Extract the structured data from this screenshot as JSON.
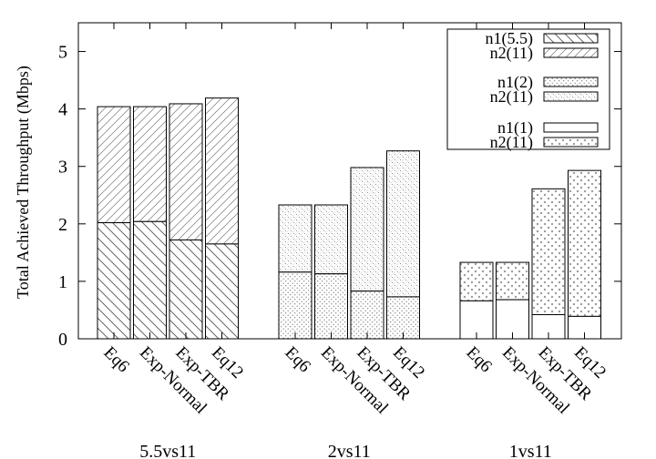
{
  "chart_data": {
    "type": "bar",
    "stacked": true,
    "ylabel": "Total Achieved Throughput (Mbps)",
    "ylim": [
      0,
      5.5
    ],
    "yticks": [
      0,
      1,
      2,
      3,
      4,
      5
    ],
    "grid": false,
    "legend_position": "top-right",
    "groups": [
      {
        "label": "5.5vs11",
        "bottom_series": "n1(5.5)",
        "top_series": "n2(11)",
        "bottom_pattern": "hatch-back",
        "top_pattern": "hatch-fwd",
        "bars": [
          {
            "category": "Eq6",
            "bottom": 2.02,
            "total": 4.04
          },
          {
            "category": "Exp-Normal",
            "bottom": 2.04,
            "total": 4.04
          },
          {
            "category": "Exp-TBR",
            "bottom": 1.72,
            "total": 4.09
          },
          {
            "category": "Eq12",
            "bottom": 1.65,
            "total": 4.19
          }
        ]
      },
      {
        "label": "2vs11",
        "bottom_series": "n1(2)",
        "top_series": "n2(11)",
        "bottom_pattern": "dots-sparse",
        "top_pattern": "dots-dense",
        "bars": [
          {
            "category": "Eq6",
            "bottom": 1.16,
            "total": 2.33
          },
          {
            "category": "Exp-Normal",
            "bottom": 1.13,
            "total": 2.33
          },
          {
            "category": "Exp-TBR",
            "bottom": 0.83,
            "total": 2.98
          },
          {
            "category": "Eq12",
            "bottom": 0.73,
            "total": 3.27
          }
        ]
      },
      {
        "label": "1vs11",
        "bottom_series": "n1(1)",
        "top_series": "n2(11)",
        "bottom_pattern": "empty",
        "top_pattern": "crosses",
        "bars": [
          {
            "category": "Eq6",
            "bottom": 0.66,
            "total": 1.33
          },
          {
            "category": "Exp-Normal",
            "bottom": 0.68,
            "total": 1.33
          },
          {
            "category": "Exp-TBR",
            "bottom": 0.42,
            "total": 2.61
          },
          {
            "category": "Eq12",
            "bottom": 0.39,
            "total": 2.93
          }
        ]
      }
    ],
    "legend": [
      {
        "label": "n1(5.5)",
        "pattern": "hatch-back"
      },
      {
        "label": "n2(11)",
        "pattern": "hatch-fwd"
      },
      {
        "label": "n1(2)",
        "pattern": "dots-sparse"
      },
      {
        "label": "n2(11)",
        "pattern": "dots-dense"
      },
      {
        "label": "n1(1)",
        "pattern": "empty"
      },
      {
        "label": "n2(11)",
        "pattern": "crosses"
      }
    ]
  }
}
